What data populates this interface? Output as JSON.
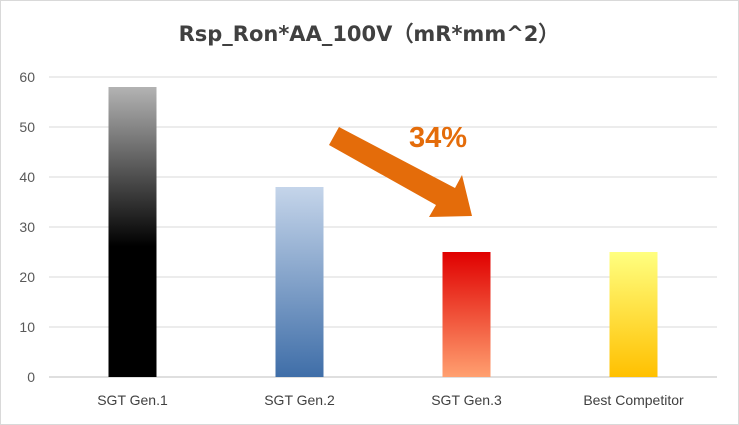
{
  "chart_data": {
    "type": "bar",
    "title": "Rsp_Ron*AA_100V（mR*mm^2）",
    "categories": [
      "SGT Gen.1",
      "SGT Gen.2",
      "SGT Gen.3",
      "Best Competitor"
    ],
    "values": [
      58,
      38,
      25,
      25
    ],
    "ylim": [
      0,
      60
    ],
    "yticks": [
      "0",
      "10",
      "20",
      "30",
      "40",
      "50",
      "60"
    ],
    "grid": true,
    "legend": "none",
    "bar_colors": [
      [
        "#b3b3b3",
        "#000000"
      ],
      [
        "#c5d5ea",
        "#3f6ea8"
      ],
      [
        "#e00000",
        "#ffa070"
      ],
      [
        "#ffff80",
        "#ffc000"
      ]
    ],
    "annotation": {
      "text": "34%",
      "color": "#e46c0a"
    }
  }
}
